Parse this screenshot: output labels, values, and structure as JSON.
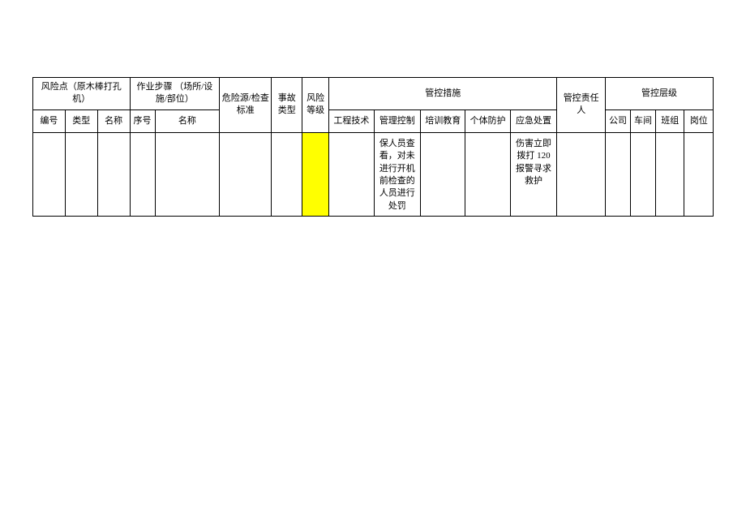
{
  "table": {
    "header_group_risk_point": "风险点（原木棒打孔机）",
    "header_group_work_steps": "作业步骤\n（场所/设施/部位）",
    "header_hazard_source": "危险源/检查标准",
    "header_accident_type": "事故类型",
    "header_risk_level": "风险等级",
    "header_group_control_measures": "管控措施",
    "header_responsible_person": "管控责任人",
    "header_group_control_level": "管控层级",
    "sub_number": "编号",
    "sub_type": "类型",
    "sub_name": "名称",
    "sub_seq": "序号",
    "sub_step_name": "名称",
    "sub_engineering": "工程技术",
    "sub_management": "管理控制",
    "sub_training": "培训教育",
    "sub_ppe": "个体防护",
    "sub_emergency": "应急处置",
    "sub_company": "公司",
    "sub_workshop": "车间",
    "sub_team": "班组",
    "sub_position": "岗位",
    "row": {
      "number": "",
      "type": "",
      "name": "",
      "seq": "",
      "step_name": "",
      "hazard": "",
      "accident": "",
      "risk_level": "",
      "engineering": "",
      "management": "保人员查看，对未进行开机前检查的人员进行处罚",
      "training": "",
      "ppe": "",
      "emergency": "伤害立即拨打 120 报警寻求救护",
      "responsible": "",
      "company": "",
      "workshop": "",
      "team": "",
      "position": ""
    }
  },
  "colors": {
    "risk_level_bg": "#ffff00",
    "border": "#000000",
    "background": "#ffffff",
    "text": "#000000"
  }
}
